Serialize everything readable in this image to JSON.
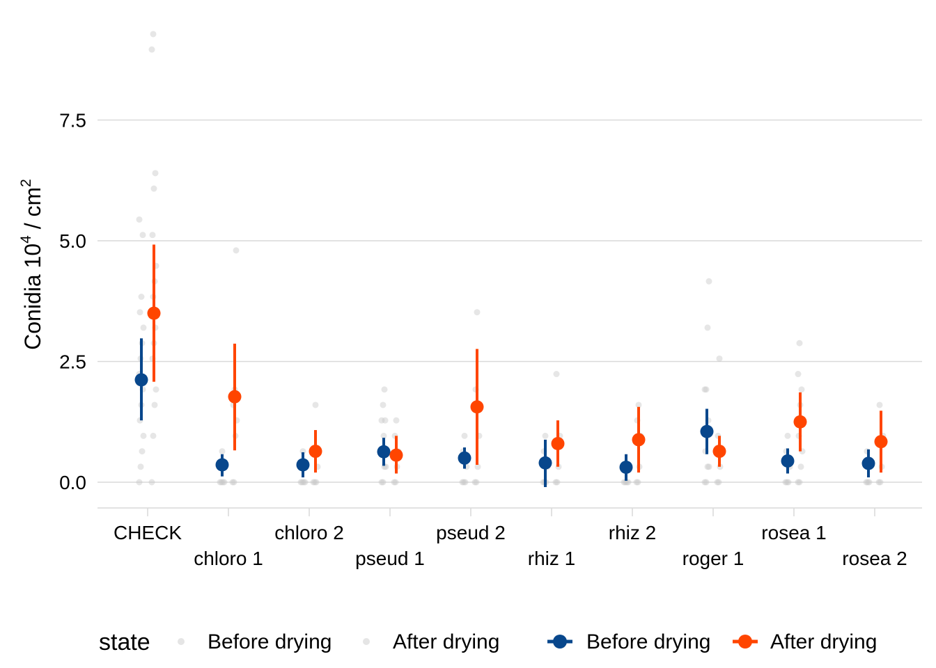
{
  "chart_data": {
    "type": "scatter",
    "title": "",
    "xlabel": "",
    "ylabel": {
      "text": "Conidia 10",
      "exp1": "4",
      "mid": " / cm",
      "exp2": "2"
    },
    "ylim": [
      -0.55,
      9.35
    ],
    "yticks": [
      0.0,
      2.5,
      5.0,
      7.5
    ],
    "ytick_labels": [
      "0.0",
      "2.5",
      "5.0",
      "7.5"
    ],
    "grid": true,
    "categories": [
      "CHECK",
      "chloro 1",
      "chloro 2",
      "pseud 1",
      "pseud 2",
      "rhiz 1",
      "rhiz 2",
      "roger 1",
      "rosea 1",
      "rosea 2"
    ],
    "legend": {
      "title": "state",
      "placement": "bottom",
      "entries": [
        "Before drying",
        "After drying",
        "Before drying",
        "After drying"
      ]
    },
    "colors": {
      "before": "#08478C",
      "after": "#FF4500",
      "raw_points": "#C8C8C8",
      "grid": "#D9D9D9"
    },
    "series": [
      {
        "name": "Before drying",
        "means": [
          2.12,
          0.36,
          0.36,
          0.63,
          0.5,
          0.4,
          0.31,
          1.05,
          0.44,
          0.39
        ],
        "lower": [
          1.28,
          0.12,
          0.1,
          0.34,
          0.28,
          -0.1,
          0.03,
          0.58,
          0.18,
          0.1
        ],
        "upper": [
          2.98,
          0.58,
          0.62,
          0.92,
          0.72,
          0.88,
          0.58,
          1.52,
          0.7,
          0.68
        ],
        "raw": [
          [
            0,
            0.32,
            0.64,
            0.96,
            1.28,
            1.6,
            1.92,
            2.24,
            2.56,
            2.88,
            3.2,
            3.52,
            3.84,
            5.12,
            5.44
          ],
          [
            0,
            0,
            0,
            0,
            0.32,
            0.64
          ],
          [
            0,
            0,
            0,
            0,
            0.32,
            0.64
          ],
          [
            0,
            0,
            0.32,
            0.32,
            0.64,
            0.96,
            1.28,
            1.28,
            1.6,
            1.92
          ],
          [
            0,
            0,
            0,
            0.32,
            0.64,
            0.96
          ],
          [
            0,
            0,
            0,
            0.32,
            0.64,
            0.96
          ],
          [
            0,
            0,
            0,
            0,
            0.32
          ],
          [
            0,
            0,
            0.32,
            0.32,
            0.64,
            0.96,
            1.28,
            1.92,
            1.92,
            3.2,
            4.16
          ],
          [
            0,
            0,
            0,
            0.32,
            0.64,
            0.96
          ],
          [
            0,
            0,
            0,
            0.32,
            0.64
          ]
        ]
      },
      {
        "name": "After drying",
        "means": [
          3.5,
          1.77,
          0.64,
          0.56,
          1.56,
          0.8,
          0.88,
          0.64,
          1.25,
          0.84
        ],
        "lower": [
          2.08,
          0.66,
          0.2,
          0.18,
          0.36,
          0.32,
          0.2,
          0.32,
          0.64,
          0.2
        ],
        "upper": [
          4.92,
          2.87,
          1.08,
          0.96,
          2.76,
          1.28,
          1.56,
          0.96,
          1.86,
          1.48
        ],
        "raw": [
          [
            0,
            0.96,
            1.6,
            1.92,
            2.56,
            2.88,
            3.2,
            3.52,
            3.84,
            4.16,
            4.48,
            5.12,
            6.08,
            6.4,
            8.96,
            9.28
          ],
          [
            0,
            0,
            0.96,
            1.28,
            1.6,
            1.92,
            4.8
          ],
          [
            0,
            0,
            0,
            0.32,
            0.64,
            1.6
          ],
          [
            0,
            0,
            0.32,
            0.64,
            0.96,
            1.28
          ],
          [
            0,
            0,
            0.32,
            0.96,
            1.92,
            3.52
          ],
          [
            0,
            0,
            0.32,
            0.96,
            2.24
          ],
          [
            0,
            0,
            0.32,
            0.96,
            1.28,
            1.6
          ],
          [
            0,
            0,
            0.32,
            0.64,
            0.96,
            2.56
          ],
          [
            0,
            0,
            0.32,
            0.64,
            0.96,
            1.6,
            1.92,
            2.24,
            2.88
          ],
          [
            0,
            0,
            0.32,
            0.96,
            1.6
          ]
        ]
      }
    ]
  }
}
